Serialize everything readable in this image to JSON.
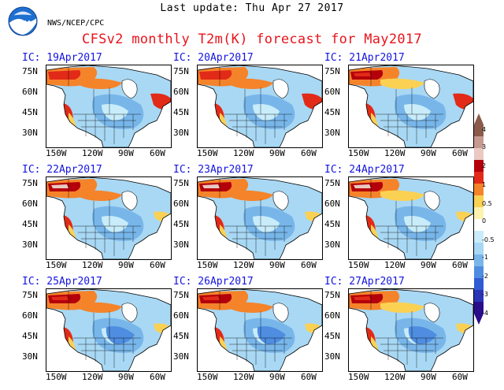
{
  "header": {
    "update": "Last update: Thu Apr 27 2017",
    "agency": "NWS/NCEP/CPC",
    "logo_text": "NOAA",
    "title": "CFSv2 monthly T2m(K) forecast for May2017"
  },
  "axes": {
    "lat_labels": [
      "75N",
      "60N",
      "45N",
      "30N"
    ],
    "lon_labels": [
      "150W",
      "120W",
      "90W",
      "60W"
    ]
  },
  "panels": [
    {
      "ic": "IC: 19Apr2017"
    },
    {
      "ic": "IC: 20Apr2017"
    },
    {
      "ic": "IC: 21Apr2017"
    },
    {
      "ic": "IC: 22Apr2017"
    },
    {
      "ic": "IC: 23Apr2017"
    },
    {
      "ic": "IC: 24Apr2017"
    },
    {
      "ic": "IC: 25Apr2017"
    },
    {
      "ic": "IC: 26Apr2017"
    },
    {
      "ic": "IC: 27Apr2017"
    }
  ],
  "colorbar": {
    "labels": [
      "4",
      "3",
      "2",
      "1",
      "0.5",
      "0",
      "-0.5",
      "-1",
      "-2",
      "-3",
      "-4"
    ],
    "colors": [
      "#8b5a4a",
      "#c79a8f",
      "#e9c9c2",
      "#b4000a",
      "#e22a18",
      "#f5832a",
      "#fbd154",
      "#fdf3ae",
      "#ffffff",
      "#c8ecfa",
      "#a8d8f4",
      "#78b6ea",
      "#4e8de0",
      "#2f5cd3",
      "#2a35b6",
      "#2a0d8a"
    ]
  }
}
